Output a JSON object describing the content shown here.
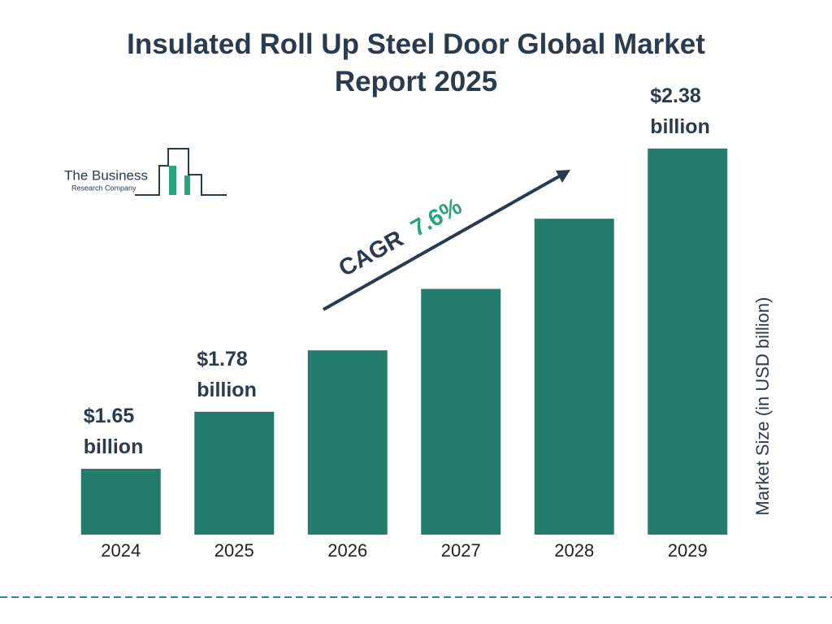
{
  "chart_data": {
    "type": "bar",
    "title": "Insulated Roll Up Steel Door Global Market Report 2025",
    "categories": [
      "2024",
      "2025",
      "2026",
      "2027",
      "2028",
      "2029"
    ],
    "values": [
      1.65,
      1.78,
      1.92,
      2.06,
      2.22,
      2.38
    ],
    "value_labels": [
      "$1.65 billion",
      "$1.78 billion",
      null,
      null,
      null,
      "$2.38 billion"
    ],
    "color": "#237b6c",
    "ylim": [
      1.5,
      2.4
    ],
    "y_label": "Market Size (in USD billion)",
    "annotation": {
      "label": "CAGR",
      "value": "7.6%"
    }
  },
  "logo": {
    "line1": "The Business",
    "line2": "Research Company"
  }
}
